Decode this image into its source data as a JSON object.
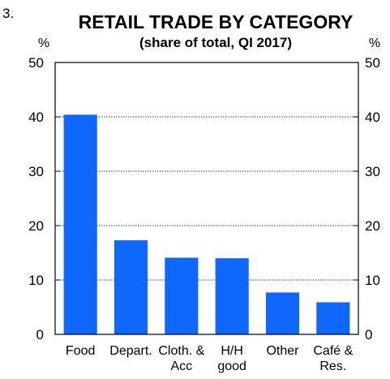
{
  "figure_number": "3.",
  "chart_data": {
    "type": "bar",
    "title": "RETAIL TRADE BY CATEGORY",
    "subtitle": "(share of total, QI 2017)",
    "y_unit_left": "%",
    "y_unit_right": "%",
    "ylim": [
      0,
      50
    ],
    "yticks": [
      "0",
      "10",
      "20",
      "30",
      "40",
      "50"
    ],
    "grid": true,
    "categories": [
      [
        "Food"
      ],
      [
        "Depart."
      ],
      [
        "Cloth. &",
        "Acc"
      ],
      [
        "H/H",
        "good"
      ],
      [
        "Other"
      ],
      [
        "Café &",
        "Res."
      ]
    ],
    "values": [
      40.4,
      17.3,
      14.1,
      14.0,
      7.7,
      5.9
    ],
    "bar_color": "#0f67fb"
  }
}
